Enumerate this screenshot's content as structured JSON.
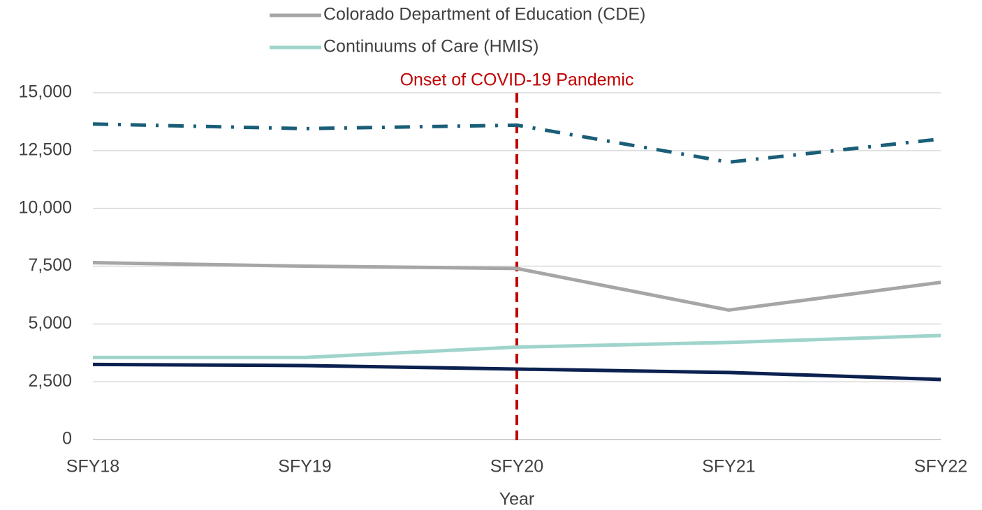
{
  "chart_data": {
    "type": "line",
    "x_label": "Year",
    "categories": [
      "SFY18",
      "SFY19",
      "SFY20",
      "SFY21",
      "SFY22"
    ],
    "series": [
      {
        "color": "#1a5e78",
        "dash": "dashdot",
        "values": [
          13650,
          13450,
          13600,
          12000,
          13000
        ]
      },
      {
        "name": "Colorado Department of Education (CDE)",
        "color": "#a6a6a6",
        "dash": "solid",
        "values": [
          7650,
          7500,
          7400,
          5600,
          6800
        ]
      },
      {
        "name": "Continuums of Care (HMIS)",
        "color": "#9fd4cb",
        "dash": "solid",
        "values": [
          3550,
          3550,
          4000,
          4200,
          4500
        ]
      },
      {
        "color": "#0b2150",
        "dash": "solid",
        "values": [
          3250,
          3200,
          3050,
          2900,
          2600
        ]
      }
    ],
    "ylim": [
      0,
      15000
    ],
    "yticks": [
      0,
      {
        "value": 2500,
        "label": "2,500"
      },
      {
        "value": 5000,
        "label": "5,000"
      },
      {
        "value": 7500,
        "label": "7,500"
      },
      {
        "value": 10000,
        "label": "10,000"
      },
      {
        "value": 12500,
        "label": "12,500"
      },
      {
        "value": 15000,
        "label": "15,000"
      }
    ],
    "grid": true,
    "legend": "top",
    "annotation": {
      "text": "Onset of COVID-19 Pandemic",
      "at": "SFY20",
      "color": "#c00000"
    }
  }
}
